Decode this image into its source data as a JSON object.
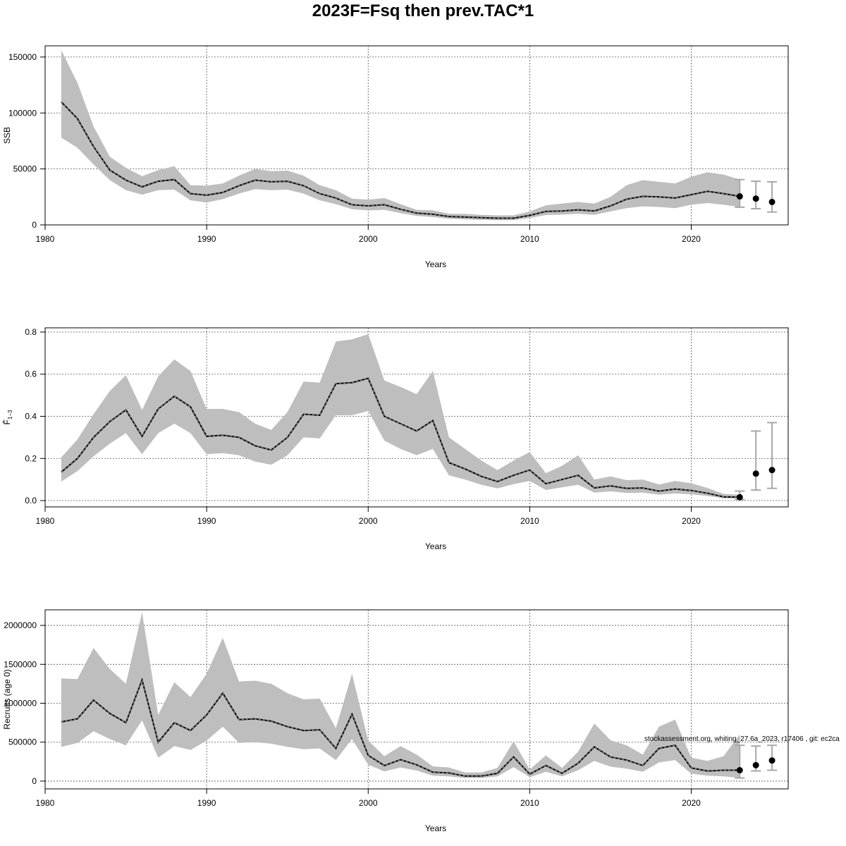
{
  "title": "2023F=Fsq then prev.TAC*1",
  "footer": "stockassessment.org, whiting_27.6a_2023, r17406 , git: ec2ca",
  "chart_data": [
    {
      "type": "area",
      "name": "ssb",
      "xlabel": "Years",
      "ylabel": "SSB",
      "xlim": [
        1980,
        2026
      ],
      "ylim": [
        0,
        160000
      ],
      "xticks": [
        1980,
        1990,
        2000,
        2010,
        2020
      ],
      "yticks": [
        0,
        50000,
        100000,
        150000
      ],
      "ytick_labels": [
        "0",
        "50000",
        "100000",
        "150000"
      ],
      "grid": true,
      "x": [
        1981,
        1982,
        1983,
        1984,
        1985,
        1986,
        1987,
        1988,
        1989,
        1990,
        1991,
        1992,
        1993,
        1994,
        1995,
        1996,
        1997,
        1998,
        1999,
        2000,
        2001,
        2002,
        2003,
        2004,
        2005,
        2006,
        2007,
        2008,
        2009,
        2010,
        2011,
        2012,
        2013,
        2014,
        2015,
        2016,
        2017,
        2018,
        2019,
        2020,
        2021,
        2022,
        2023
      ],
      "estimate": [
        110000,
        95000,
        70000,
        49000,
        40000,
        34000,
        39000,
        40500,
        28000,
        26500,
        29000,
        35000,
        40000,
        38500,
        39000,
        35000,
        28000,
        24000,
        18000,
        17000,
        18000,
        14000,
        10500,
        9500,
        7500,
        7000,
        6500,
        6000,
        6000,
        8500,
        12000,
        12500,
        13500,
        12500,
        17000,
        23000,
        25500,
        25000,
        24000,
        27000,
        30000,
        28000,
        25500
      ],
      "lower": [
        78000,
        69000,
        54000,
        40000,
        31000,
        27000,
        31000,
        31500,
        22000,
        20000,
        23000,
        28000,
        32000,
        31000,
        31500,
        28000,
        22000,
        18500,
        14000,
        13000,
        13500,
        10500,
        8000,
        7000,
        5500,
        5000,
        4500,
        4300,
        4300,
        6200,
        8800,
        9200,
        10000,
        9000,
        12000,
        15000,
        16500,
        16000,
        15000,
        18000,
        19500,
        18000,
        16000
      ],
      "upper": [
        156000,
        127000,
        88000,
        61000,
        51000,
        43500,
        49000,
        52500,
        35500,
        35000,
        37000,
        44000,
        50000,
        48000,
        48500,
        44000,
        35500,
        31000,
        23500,
        22500,
        24000,
        18500,
        13500,
        13000,
        10000,
        9800,
        9000,
        8500,
        8500,
        12000,
        17500,
        19000,
        20500,
        19000,
        25000,
        35500,
        40000,
        38500,
        37000,
        43000,
        47000,
        45000,
        40500
      ],
      "projections": [
        {
          "x": 2023,
          "value": 25500,
          "lower": 15800,
          "upper": 40500
        },
        {
          "x": 2024,
          "value": 23500,
          "lower": 14500,
          "upper": 39000
        },
        {
          "x": 2025,
          "value": 20500,
          "lower": 11500,
          "upper": 38500
        }
      ]
    },
    {
      "type": "area",
      "name": "fbar",
      "xlabel": "Years",
      "ylabel": "F̄1–3",
      "ylabel_main": "F̄",
      "ylabel_sub": "1−3",
      "xlim": [
        1980,
        2026
      ],
      "ylim": [
        -0.03,
        0.82
      ],
      "xticks": [
        1980,
        1990,
        2000,
        2010,
        2020
      ],
      "yticks": [
        0.0,
        0.2,
        0.4,
        0.6,
        0.8
      ],
      "ytick_labels": [
        "0.0",
        "0.2",
        "0.4",
        "0.6",
        "0.8"
      ],
      "grid": true,
      "x": [
        1981,
        1982,
        1983,
        1984,
        1985,
        1986,
        1987,
        1988,
        1989,
        1990,
        1991,
        1992,
        1993,
        1994,
        1995,
        1996,
        1997,
        1998,
        1999,
        2000,
        2001,
        2002,
        2003,
        2004,
        2005,
        2006,
        2007,
        2008,
        2009,
        2010,
        2011,
        2012,
        2013,
        2014,
        2015,
        2016,
        2017,
        2018,
        2019,
        2020,
        2021,
        2022,
        2023
      ],
      "estimate": [
        0.135,
        0.2,
        0.3,
        0.375,
        0.43,
        0.305,
        0.435,
        0.495,
        0.445,
        0.305,
        0.31,
        0.3,
        0.26,
        0.24,
        0.3,
        0.41,
        0.405,
        0.555,
        0.56,
        0.58,
        0.4,
        0.365,
        0.33,
        0.38,
        0.18,
        0.15,
        0.115,
        0.09,
        0.12,
        0.145,
        0.08,
        0.1,
        0.12,
        0.06,
        0.07,
        0.058,
        0.06,
        0.045,
        0.055,
        0.048,
        0.035,
        0.018,
        0.016
      ],
      "lower": [
        0.09,
        0.14,
        0.21,
        0.27,
        0.32,
        0.22,
        0.32,
        0.365,
        0.32,
        0.22,
        0.225,
        0.215,
        0.185,
        0.17,
        0.215,
        0.3,
        0.295,
        0.405,
        0.405,
        0.425,
        0.285,
        0.245,
        0.215,
        0.245,
        0.12,
        0.1,
        0.075,
        0.058,
        0.078,
        0.093,
        0.05,
        0.063,
        0.075,
        0.038,
        0.044,
        0.036,
        0.038,
        0.028,
        0.034,
        0.03,
        0.022,
        0.011,
        0.01
      ],
      "upper": [
        0.205,
        0.29,
        0.41,
        0.52,
        0.595,
        0.43,
        0.59,
        0.67,
        0.615,
        0.435,
        0.435,
        0.42,
        0.365,
        0.335,
        0.42,
        0.565,
        0.56,
        0.755,
        0.765,
        0.79,
        0.57,
        0.54,
        0.505,
        0.615,
        0.3,
        0.245,
        0.19,
        0.145,
        0.19,
        0.23,
        0.13,
        0.165,
        0.215,
        0.1,
        0.115,
        0.097,
        0.1,
        0.076,
        0.093,
        0.082,
        0.06,
        0.032,
        0.028
      ],
      "projections": [
        {
          "x": 2023,
          "value": 0.016,
          "lower": 0.005,
          "upper": 0.045
        },
        {
          "x": 2024,
          "value": 0.128,
          "lower": 0.05,
          "upper": 0.33
        },
        {
          "x": 2025,
          "value": 0.145,
          "lower": 0.058,
          "upper": 0.37
        }
      ]
    },
    {
      "type": "area",
      "name": "recruits",
      "xlabel": "Years",
      "ylabel": "Recruits (age 0)",
      "xlim": [
        1980,
        2026
      ],
      "ylim": [
        -100000,
        2200000
      ],
      "xticks": [
        1980,
        1990,
        2000,
        2010,
        2020
      ],
      "yticks": [
        0,
        500000,
        1000000,
        1500000,
        2000000
      ],
      "ytick_labels": [
        "0",
        "500000",
        "1000000",
        "1500000",
        "2000000"
      ],
      "grid": true,
      "x": [
        1981,
        1982,
        1983,
        1984,
        1985,
        1986,
        1987,
        1988,
        1989,
        1990,
        1991,
        1992,
        1993,
        1994,
        1995,
        1996,
        1997,
        1998,
        1999,
        2000,
        2001,
        2002,
        2003,
        2004,
        2005,
        2006,
        2007,
        2008,
        2009,
        2010,
        2011,
        2012,
        2013,
        2014,
        2015,
        2016,
        2017,
        2018,
        2019,
        2020,
        2021,
        2022,
        2023
      ],
      "estimate": [
        760000,
        800000,
        1040000,
        870000,
        750000,
        1300000,
        500000,
        750000,
        650000,
        850000,
        1130000,
        790000,
        800000,
        770000,
        700000,
        650000,
        660000,
        420000,
        860000,
        330000,
        200000,
        275000,
        210000,
        115000,
        105000,
        65000,
        65000,
        100000,
        310000,
        90000,
        200000,
        100000,
        230000,
        440000,
        310000,
        270000,
        200000,
        420000,
        460000,
        170000,
        130000,
        140000,
        140000
      ],
      "lower": [
        440000,
        490000,
        640000,
        540000,
        460000,
        780000,
        300000,
        450000,
        400000,
        520000,
        700000,
        490000,
        500000,
        480000,
        440000,
        410000,
        420000,
        270000,
        540000,
        210000,
        125000,
        175000,
        135000,
        70000,
        60000,
        40000,
        40000,
        60000,
        180000,
        50000,
        120000,
        60000,
        140000,
        260000,
        185000,
        160000,
        120000,
        240000,
        270000,
        95000,
        70000,
        60000,
        40000
      ],
      "upper": [
        1320000,
        1310000,
        1710000,
        1440000,
        1250000,
        2170000,
        850000,
        1270000,
        1080000,
        1380000,
        1840000,
        1280000,
        1290000,
        1250000,
        1130000,
        1050000,
        1060000,
        680000,
        1380000,
        520000,
        320000,
        450000,
        340000,
        190000,
        175000,
        110000,
        110000,
        170000,
        510000,
        150000,
        330000,
        170000,
        380000,
        740000,
        525000,
        460000,
        340000,
        700000,
        790000,
        300000,
        260000,
        320000,
        600000
      ],
      "projections": [
        {
          "x": 2023,
          "value": 140000,
          "lower": 40000,
          "upper": 460000
        },
        {
          "x": 2024,
          "value": 205000,
          "lower": 130000,
          "upper": 450000
        },
        {
          "x": 2025,
          "value": 265000,
          "lower": 140000,
          "upper": 460000
        }
      ]
    }
  ]
}
